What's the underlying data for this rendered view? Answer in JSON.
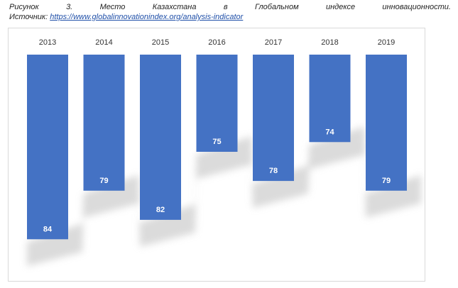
{
  "caption": {
    "words": [
      "Рисунок",
      "3.",
      "Место",
      "Казахстана",
      "в",
      "Глобальном",
      "индексе",
      "инновационности."
    ],
    "source_prefix": "Источник:",
    "source_link": "https://www.globalinnovationindex.org/analysis-indicator"
  },
  "chart_data": {
    "type": "bar",
    "orientation": "inverted-rank",
    "title": "",
    "xlabel": "",
    "ylabel": "",
    "categories": [
      "2013",
      "2014",
      "2015",
      "2016",
      "2017",
      "2018",
      "2019"
    ],
    "values": [
      84,
      79,
      82,
      75,
      78,
      74,
      79
    ],
    "bar_color": "#4472c4",
    "label_color": "#ffffff",
    "grid": false,
    "legend": "none"
  }
}
